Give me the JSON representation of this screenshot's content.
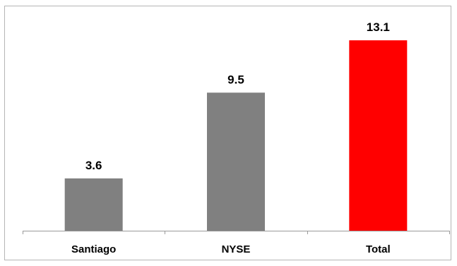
{
  "chart_data": {
    "type": "bar",
    "categories": [
      "Santiago",
      "NYSE",
      "Total"
    ],
    "values": [
      3.6,
      9.5,
      13.1
    ],
    "data_labels": [
      "3.6",
      "9.5",
      "13.1"
    ],
    "colors": [
      "#808080",
      "#808080",
      "#ff0000"
    ],
    "title": "",
    "xlabel": "",
    "ylabel": "",
    "ylim": [
      0,
      14.2
    ],
    "grid": false,
    "legend": "none"
  }
}
